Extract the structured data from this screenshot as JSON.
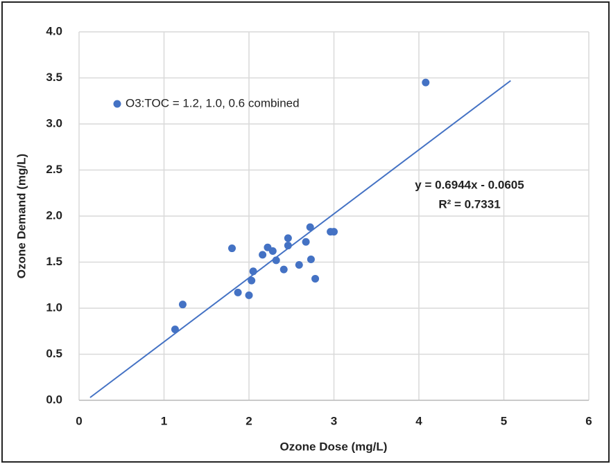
{
  "chart_data": {
    "type": "scatter",
    "xlabel": "Ozone Dose (mg/L)",
    "ylabel": "Ozone Demand (mg/L)",
    "series": [
      {
        "name": "O3:TOC = 1.2, 1.0, 0.6 combined",
        "color": "#4472c4",
        "x": [
          1.13,
          1.22,
          1.8,
          1.87,
          2.0,
          2.03,
          2.05,
          2.16,
          2.22,
          2.28,
          2.32,
          2.41,
          2.46,
          2.46,
          2.59,
          2.67,
          2.72,
          2.73,
          2.78,
          2.96,
          3.0,
          4.08
        ],
        "values": [
          0.77,
          1.04,
          1.65,
          1.17,
          1.14,
          1.3,
          1.4,
          1.58,
          1.66,
          1.62,
          1.52,
          1.42,
          1.76,
          1.68,
          1.47,
          1.72,
          1.88,
          1.53,
          1.32,
          1.83,
          1.83,
          3.45
        ]
      }
    ],
    "trendline": {
      "label": "y = 0.6944x - 0.0605",
      "r2_label": "R² = 0.7331",
      "x": [
        0.13,
        5.08
      ],
      "y": [
        0.03,
        3.47
      ]
    },
    "xlim": [
      0,
      6
    ],
    "xticks": [
      0,
      1,
      2,
      3,
      4,
      5,
      6
    ],
    "ylim": [
      0,
      4
    ],
    "yticks": [
      {
        "value": 0,
        "label": "0.0"
      },
      0.5,
      {
        "value": 1,
        "label": "1.0"
      },
      1.5,
      {
        "value": 2,
        "label": "2.0"
      },
      2.5,
      {
        "value": 3,
        "label": "3.0"
      },
      3.5,
      {
        "value": 4,
        "label": "4.0"
      }
    ],
    "grid": true,
    "legend": "top-left"
  }
}
